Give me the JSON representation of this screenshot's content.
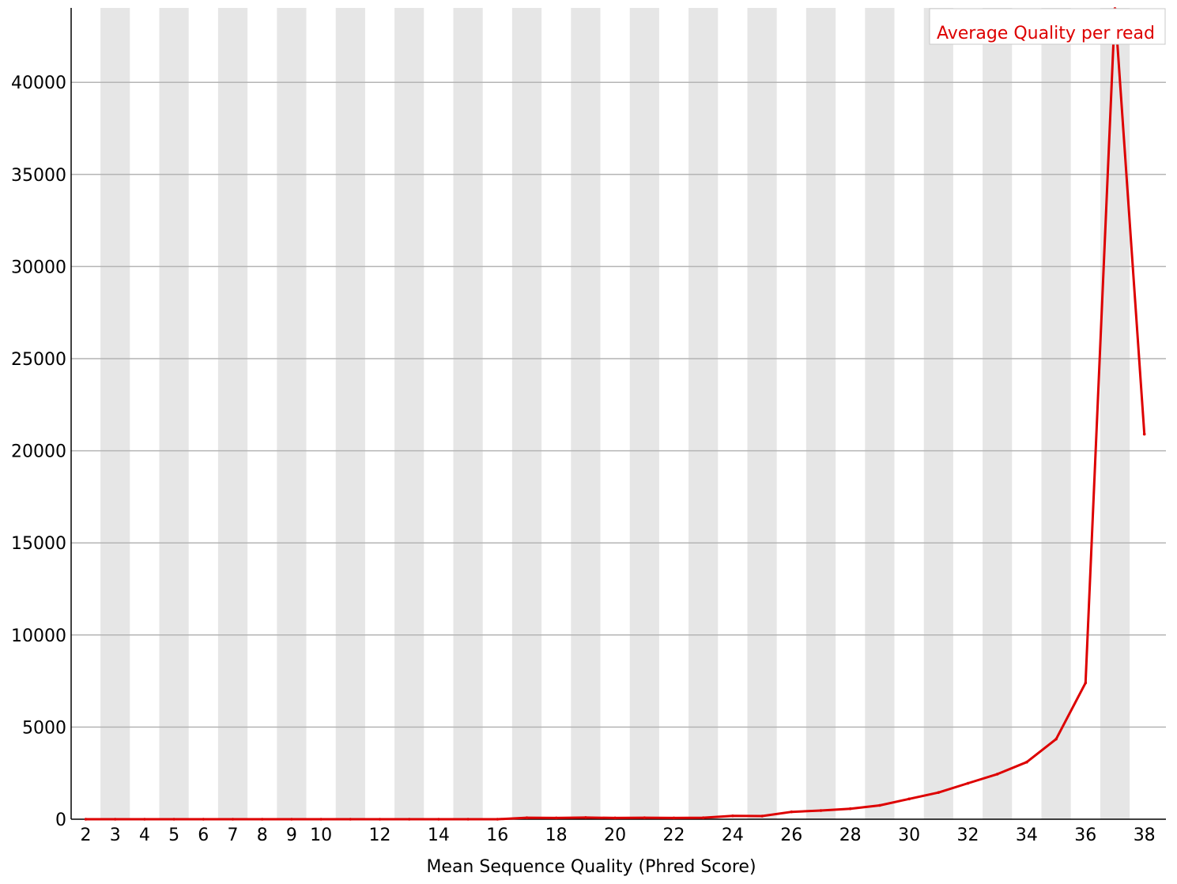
{
  "chart_data": {
    "type": "line",
    "title": "",
    "xlabel": "Mean Sequence Quality (Phred Score)",
    "ylabel": "",
    "xlim": [
      2,
      38
    ],
    "ylim": [
      0,
      44000
    ],
    "grid": "horizontal",
    "legend_position": "top-right",
    "x_ticks": [
      "2",
      "3",
      "4",
      "5",
      "6",
      "7",
      "8",
      "9",
      "10",
      "12",
      "14",
      "16",
      "18",
      "20",
      "22",
      "24",
      "26",
      "28",
      "30",
      "32",
      "34",
      "36",
      "38"
    ],
    "y_ticks": [
      "0",
      "5000",
      "10000",
      "15000",
      "20000",
      "25000",
      "30000",
      "35000",
      "40000"
    ],
    "series": [
      {
        "name": "Average Quality per read",
        "color": "#dd0000",
        "x": [
          2,
          3,
          4,
          5,
          6,
          7,
          8,
          9,
          10,
          11,
          12,
          13,
          14,
          15,
          16,
          17,
          18,
          19,
          20,
          21,
          22,
          23,
          24,
          25,
          26,
          27,
          28,
          29,
          30,
          31,
          32,
          33,
          34,
          35,
          36,
          37,
          38
        ],
        "values": [
          0,
          0,
          0,
          0,
          0,
          0,
          0,
          0,
          0,
          0,
          0,
          0,
          0,
          0,
          0,
          80,
          70,
          90,
          70,
          80,
          70,
          80,
          180,
          170,
          400,
          470,
          570,
          750,
          1100,
          1450,
          1950,
          2450,
          3100,
          4350,
          7400,
          44000,
          20900
        ]
      }
    ]
  }
}
